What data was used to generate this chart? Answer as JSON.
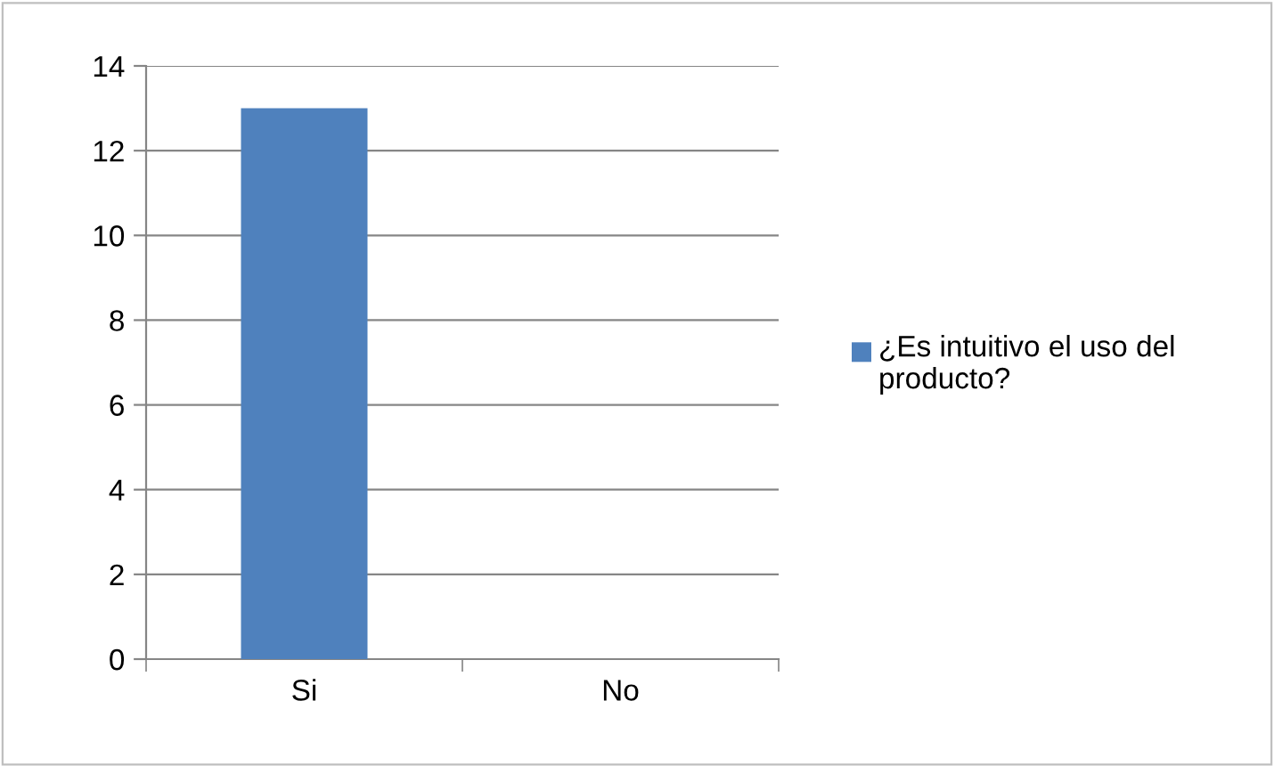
{
  "chart_data": {
    "type": "bar",
    "categories": [
      "Si",
      "No"
    ],
    "series": [
      {
        "name": "¿Es intuitivo el uso del producto?",
        "color": "#4f81bd",
        "values": [
          13,
          0
        ]
      }
    ],
    "ylim": [
      0,
      14
    ],
    "yticks": [
      0,
      2,
      4,
      6,
      8,
      10,
      12,
      14
    ],
    "grid": "y",
    "legend": "right"
  }
}
